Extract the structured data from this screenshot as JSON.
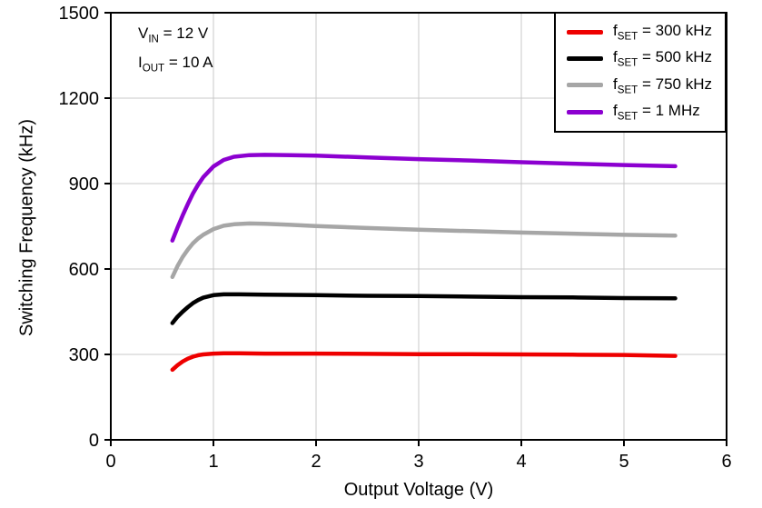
{
  "chart_data": {
    "type": "line",
    "title": "",
    "xlabel": "Output Voltage (V)",
    "ylabel": "Switching Frequency (kHz)",
    "xlim": [
      0,
      6
    ],
    "ylim": [
      0,
      1500
    ],
    "xticks": [
      0,
      1,
      2,
      3,
      4,
      5,
      6
    ],
    "yticks": [
      0,
      300,
      600,
      900,
      1200,
      1500
    ],
    "grid": true,
    "legend_position": "top-right",
    "annotations": [
      {
        "pre": "V",
        "sub": "IN",
        "post": " = 12 V"
      },
      {
        "pre": "I",
        "sub": "OUT",
        "post": " = 10 A"
      }
    ],
    "series": [
      {
        "label_pre": "f",
        "label_sub": "SET",
        "label_post": " = 300 kHz",
        "color": "#ee0000",
        "points": [
          [
            0.6,
            246
          ],
          [
            0.65,
            262
          ],
          [
            0.7,
            275
          ],
          [
            0.75,
            285
          ],
          [
            0.8,
            292
          ],
          [
            0.85,
            297
          ],
          [
            0.9,
            300
          ],
          [
            1.0,
            303
          ],
          [
            1.1,
            304
          ],
          [
            1.25,
            304
          ],
          [
            1.5,
            303
          ],
          [
            2.0,
            303
          ],
          [
            2.5,
            302
          ],
          [
            3.0,
            301
          ],
          [
            3.5,
            301
          ],
          [
            4.0,
            300
          ],
          [
            4.5,
            299
          ],
          [
            5.0,
            298
          ],
          [
            5.5,
            295
          ]
        ]
      },
      {
        "label_pre": "f",
        "label_sub": "SET",
        "label_post": " = 500 kHz",
        "color": "#000000",
        "points": [
          [
            0.6,
            410
          ],
          [
            0.65,
            432
          ],
          [
            0.7,
            450
          ],
          [
            0.75,
            466
          ],
          [
            0.8,
            480
          ],
          [
            0.85,
            491
          ],
          [
            0.9,
            499
          ],
          [
            1.0,
            508
          ],
          [
            1.1,
            511
          ],
          [
            1.25,
            511
          ],
          [
            1.5,
            510
          ],
          [
            2.0,
            508
          ],
          [
            2.5,
            506
          ],
          [
            3.0,
            505
          ],
          [
            3.5,
            503
          ],
          [
            4.0,
            501
          ],
          [
            4.5,
            500
          ],
          [
            5.0,
            498
          ],
          [
            5.5,
            497
          ]
        ]
      },
      {
        "label_pre": "f",
        "label_sub": "SET",
        "label_post": " = 750 kHz",
        "color": "#a6a6a6",
        "points": [
          [
            0.6,
            572
          ],
          [
            0.65,
            610
          ],
          [
            0.7,
            642
          ],
          [
            0.75,
            668
          ],
          [
            0.8,
            690
          ],
          [
            0.85,
            707
          ],
          [
            0.9,
            720
          ],
          [
            1.0,
            740
          ],
          [
            1.1,
            752
          ],
          [
            1.2,
            757
          ],
          [
            1.35,
            760
          ],
          [
            1.5,
            759
          ],
          [
            1.75,
            755
          ],
          [
            2.0,
            751
          ],
          [
            2.5,
            744
          ],
          [
            3.0,
            738
          ],
          [
            3.5,
            733
          ],
          [
            4.0,
            728
          ],
          [
            4.5,
            724
          ],
          [
            5.0,
            720
          ],
          [
            5.5,
            717
          ]
        ]
      },
      {
        "label_pre": "f",
        "label_sub": "SET",
        "label_post": " = 1 MHz",
        "color": "#8c00d0",
        "points": [
          [
            0.6,
            700
          ],
          [
            0.65,
            745
          ],
          [
            0.7,
            788
          ],
          [
            0.75,
            828
          ],
          [
            0.8,
            865
          ],
          [
            0.85,
            896
          ],
          [
            0.9,
            922
          ],
          [
            1.0,
            960
          ],
          [
            1.1,
            983
          ],
          [
            1.2,
            994
          ],
          [
            1.35,
            1000
          ],
          [
            1.5,
            1001
          ],
          [
            1.75,
            1000
          ],
          [
            2.0,
            998
          ],
          [
            2.5,
            992
          ],
          [
            3.0,
            986
          ],
          [
            3.5,
            981
          ],
          [
            4.0,
            975
          ],
          [
            4.5,
            970
          ],
          [
            5.0,
            965
          ],
          [
            5.5,
            961
          ]
        ]
      }
    ]
  }
}
